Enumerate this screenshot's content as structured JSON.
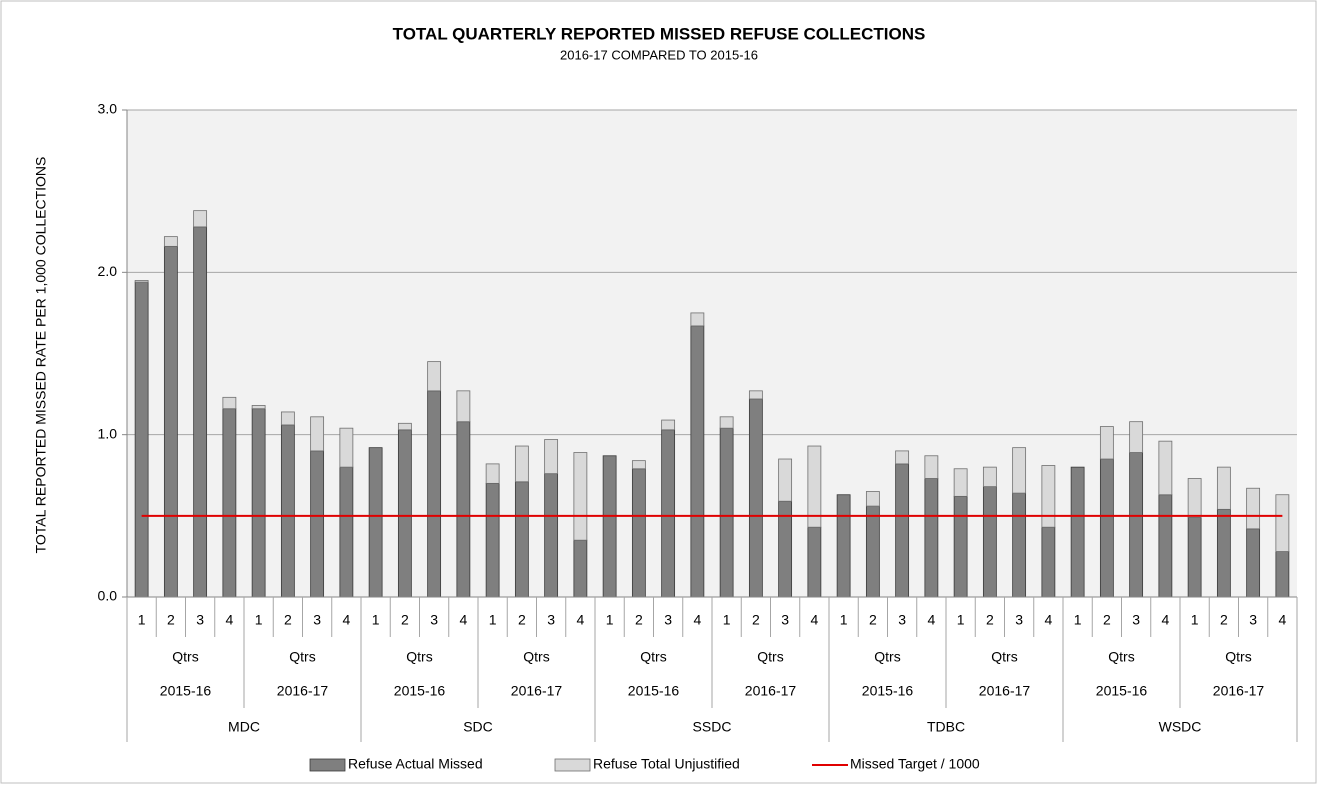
{
  "chart_data": {
    "type": "bar",
    "stacked": true,
    "title": "TOTAL QUARTERLY REPORTED MISSED REFUSE COLLECTIONS",
    "subtitle": "2016-17  COMPARED TO 2015-16",
    "y_label": "TOTAL REPORTED MISSED RATE PER 1,000 COLLECTIONS",
    "categories": [
      "1",
      "2",
      "3",
      "4",
      "1",
      "2",
      "3",
      "4",
      "1",
      "2",
      "3",
      "4",
      "1",
      "2",
      "3",
      "4",
      "1",
      "2",
      "3",
      "4",
      "1",
      "2",
      "3",
      "4",
      "1",
      "2",
      "3",
      "4",
      "1",
      "2",
      "3",
      "4",
      "1",
      "2",
      "3",
      "4",
      "1",
      "2",
      "3",
      "4"
    ],
    "groups": [
      {
        "name": "MDC",
        "years": [
          {
            "name": "2015-16",
            "unit": "Qtrs"
          },
          {
            "name": "2016-17",
            "unit": "Qtrs"
          }
        ]
      },
      {
        "name": "SDC",
        "years": [
          {
            "name": "2015-16",
            "unit": "Qtrs"
          },
          {
            "name": "2016-17",
            "unit": "Qtrs"
          }
        ]
      },
      {
        "name": "SSDC",
        "years": [
          {
            "name": "2015-16",
            "unit": "Qtrs"
          },
          {
            "name": "2016-17",
            "unit": "Qtrs"
          }
        ]
      },
      {
        "name": "TDBC",
        "years": [
          {
            "name": "2015-16",
            "unit": "Qtrs"
          },
          {
            "name": "2016-17",
            "unit": "Qtrs"
          }
        ]
      },
      {
        "name": "WSDC",
        "years": [
          {
            "name": "2015-16",
            "unit": "Qtrs"
          },
          {
            "name": "2016-17",
            "unit": "Qtrs"
          }
        ]
      }
    ],
    "series": [
      {
        "name": "Refuse Actual Missed",
        "type": "bar",
        "color": "#7f7f7f",
        "stroke": "#3a3a3a",
        "values": [
          1.94,
          2.16,
          2.28,
          1.16,
          1.16,
          1.06,
          0.9,
          0.8,
          0.92,
          1.03,
          1.27,
          1.08,
          0.7,
          0.71,
          0.76,
          0.35,
          0.87,
          0.79,
          1.03,
          1.67,
          1.04,
          1.22,
          0.59,
          0.43,
          0.63,
          0.56,
          0.82,
          0.73,
          0.62,
          0.68,
          0.64,
          0.43,
          0.8,
          0.85,
          0.89,
          0.63,
          0.49,
          0.54,
          0.42,
          0.28
        ]
      },
      {
        "name": "Refuse Total Unjustified",
        "type": "bar",
        "color": "#d9d9d9",
        "stroke": "#6f6f6f",
        "values": [
          0.01,
          0.06,
          0.1,
          0.07,
          0.02,
          0.08,
          0.21,
          0.24,
          0,
          0.04,
          0.18,
          0.19,
          0.12,
          0.22,
          0.21,
          0.54,
          0,
          0.05,
          0.06,
          0.08,
          0.07,
          0.05,
          0.26,
          0.5,
          0,
          0.09,
          0.08,
          0.14,
          0.17,
          0.12,
          0.28,
          0.38,
          0,
          0.2,
          0.19,
          0.33,
          0.24,
          0.26,
          0.25,
          0.35
        ]
      },
      {
        "name": "Missed Target / 1000",
        "type": "line",
        "color": "#e00000",
        "values": [
          0.5,
          0.5,
          0.5,
          0.5,
          0.5,
          0.5,
          0.5,
          0.5,
          0.5,
          0.5,
          0.5,
          0.5,
          0.5,
          0.5,
          0.5,
          0.5,
          0.5,
          0.5,
          0.5,
          0.5,
          0.5,
          0.5,
          0.5,
          0.5,
          0.5,
          0.5,
          0.5,
          0.5,
          0.5,
          0.5,
          0.5,
          0.5,
          0.5,
          0.5,
          0.5,
          0.5,
          0.5,
          0.5,
          0.5,
          0.5
        ]
      }
    ],
    "ylim": [
      0,
      3
    ],
    "yticks": [
      {
        "value": 0,
        "label": "0.0"
      },
      {
        "value": 1,
        "label": "1.0"
      },
      {
        "value": 2,
        "label": "2.0"
      },
      {
        "value": 3,
        "label": "3.0"
      }
    ],
    "grid": true,
    "legend": "bottom"
  }
}
